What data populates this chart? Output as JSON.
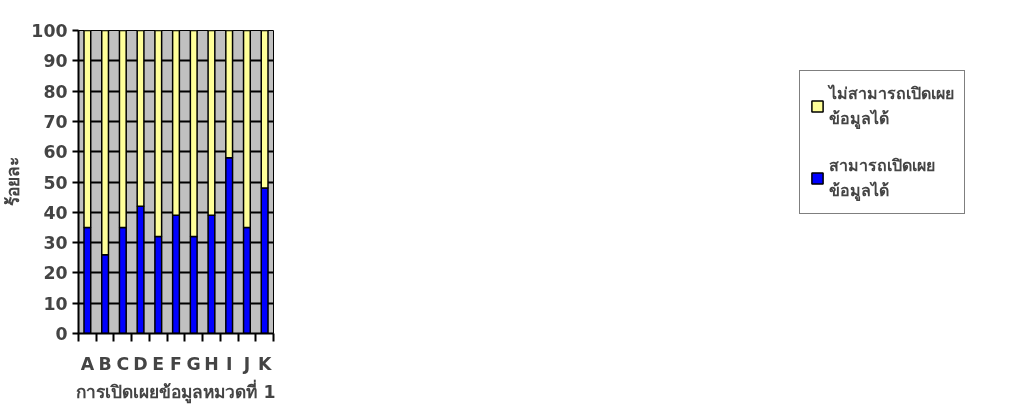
{
  "chart_data": {
    "type": "bar",
    "stacked": true,
    "xlabel": "การเปิดเผยข้อมูลหมวดที่ 1",
    "ylabel": "ร้อยละ",
    "categories": [
      "A",
      "B",
      "C",
      "D",
      "E",
      "F",
      "G",
      "H",
      "I",
      "J",
      "K"
    ],
    "series": [
      {
        "name": "สามารถเปิดเผย ข้อมูลได้",
        "color": "#0000ff",
        "values": [
          35,
          26,
          35,
          42,
          32,
          39,
          32,
          39,
          58,
          35,
          48
        ]
      },
      {
        "name": "ไม่สามารถเปิดเผย ข้อมูลได้",
        "color": "#ffff99",
        "values": [
          65,
          74,
          65,
          58,
          68,
          61,
          68,
          61,
          42,
          65,
          52
        ]
      }
    ],
    "ylim": [
      0,
      100
    ],
    "yticks": [
      0,
      10,
      20,
      30,
      40,
      50,
      60,
      70,
      80,
      90,
      100
    ],
    "grid": "y",
    "legend": "right"
  }
}
